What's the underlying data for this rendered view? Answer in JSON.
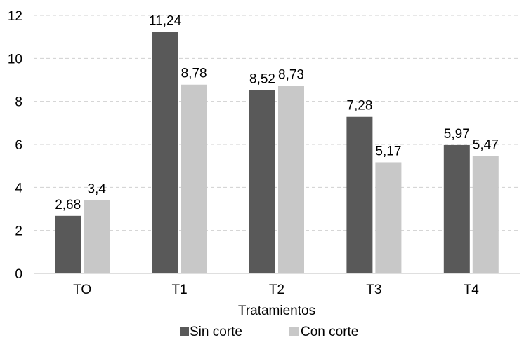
{
  "chart_data": {
    "type": "bar",
    "categories": [
      "TO",
      "T1",
      "T2",
      "T3",
      "T4"
    ],
    "series": [
      {
        "name": "Sin corte",
        "color": "#595959",
        "values": [
          2.68,
          11.24,
          8.52,
          7.28,
          5.97
        ],
        "labels": [
          "2,68",
          "11,24",
          "8,52",
          "7,28",
          "5,97"
        ]
      },
      {
        "name": "Con corte",
        "color": "#c8c8c8",
        "values": [
          3.4,
          8.78,
          8.73,
          5.17,
          5.47
        ],
        "labels": [
          "3,4",
          "8,78",
          "8,73",
          "5,17",
          "5,47"
        ]
      }
    ],
    "xlabel": "Tratamientos",
    "ylabel": "",
    "ylim": [
      0,
      12
    ],
    "yticks": [
      0,
      2,
      4,
      6,
      8,
      10,
      12
    ],
    "grid": true,
    "legend_position": "bottom"
  }
}
